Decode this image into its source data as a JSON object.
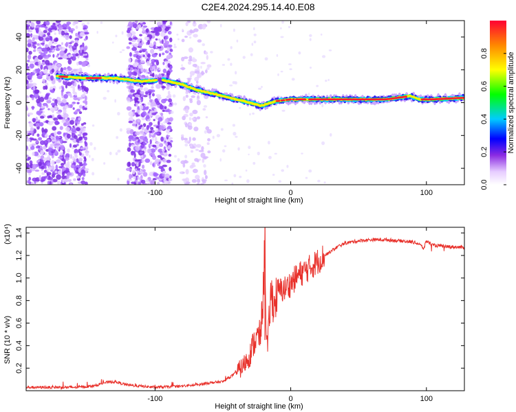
{
  "title": "C2E4.2024.295.14.40.E08",
  "chart_data": [
    {
      "type": "heatmap",
      "name": "spectrogram",
      "xlabel": "Height of straight line (km)",
      "ylabel": "Frequency (Hz)",
      "xlim": [
        -195,
        128
      ],
      "ylim": [
        -50,
        50
      ],
      "xticks": [
        -100,
        0,
        100
      ],
      "xticklabels": [
        "-100",
        "0",
        "100"
      ],
      "yticks": [
        -40,
        -20,
        0,
        20,
        40
      ],
      "yticklabels": [
        "-40",
        "-20",
        "0",
        "20",
        "40"
      ],
      "colorbar": {
        "label": "Normalized spectral amplitude",
        "range": [
          0,
          1
        ],
        "ticks": [
          0.0,
          0.2,
          0.4,
          0.6,
          0.8
        ],
        "ticklabels": [
          "0.0",
          "0.2",
          "0.4",
          "0.6",
          "0.8"
        ]
      },
      "ridge": {
        "x": [
          -170,
          -150,
          -130,
          -110,
          -95,
          -80,
          -70,
          -60,
          -50,
          -40,
          -30,
          -22,
          -15,
          -10,
          0,
          10,
          30,
          50,
          70,
          88,
          95,
          105,
          128
        ],
        "y": [
          16,
          15,
          15,
          13,
          14,
          11,
          8,
          6,
          4,
          2,
          0,
          -2,
          0,
          1,
          2,
          2,
          2,
          2,
          2,
          4,
          2,
          2,
          3
        ]
      },
      "noise_bands": [
        [
          -195,
          -150
        ],
        [
          -120,
          -88
        ],
        [
          -80,
          -60
        ]
      ]
    },
    {
      "type": "line",
      "name": "snr",
      "xlabel": "Height of straight line (km)",
      "ylabel": "SNR (10 * v/v)",
      "scale_label": "(x10⁴)",
      "xlim": [
        -195,
        128
      ],
      "ylim": [
        0,
        1.45
      ],
      "xticks": [
        -100,
        0,
        100
      ],
      "xticklabels": [
        "-100",
        "0",
        "100"
      ],
      "yticks": [
        0.2,
        0.4,
        0.6,
        0.8,
        1.0,
        1.2,
        1.4
      ],
      "yticklabels": [
        "0.2",
        "0.4",
        "0.6",
        "0.8",
        "1.0",
        "1.2",
        "1.4"
      ],
      "series": [
        {
          "name": "SNR",
          "color": "#e8302a",
          "x": [
            -195,
            -160,
            -145,
            -138,
            -130,
            -120,
            -100,
            -80,
            -70,
            -60,
            -50,
            -45,
            -40,
            -35,
            -32,
            -30,
            -28,
            -26,
            -24,
            -22,
            -21,
            -20,
            -19,
            -18,
            -17,
            -16,
            -15,
            -14,
            -12,
            -10,
            -5,
            0,
            5,
            10,
            15,
            20,
            25,
            30,
            35,
            40,
            50,
            60,
            70,
            80,
            90,
            95,
            98,
            100,
            105,
            115,
            128
          ],
          "y": [
            0.03,
            0.03,
            0.04,
            0.07,
            0.08,
            0.05,
            0.03,
            0.04,
            0.05,
            0.07,
            0.08,
            0.12,
            0.16,
            0.22,
            0.28,
            0.32,
            0.4,
            0.45,
            0.48,
            0.5,
            0.75,
            0.9,
            1.45,
            0.45,
            0.38,
            0.6,
            0.8,
            0.85,
            0.75,
            0.88,
            0.9,
            0.95,
            1.02,
            1.06,
            1.1,
            1.15,
            1.2,
            1.24,
            1.28,
            1.31,
            1.33,
            1.34,
            1.34,
            1.33,
            1.32,
            1.3,
            1.26,
            1.33,
            1.29,
            1.28,
            1.27
          ]
        }
      ]
    }
  ]
}
